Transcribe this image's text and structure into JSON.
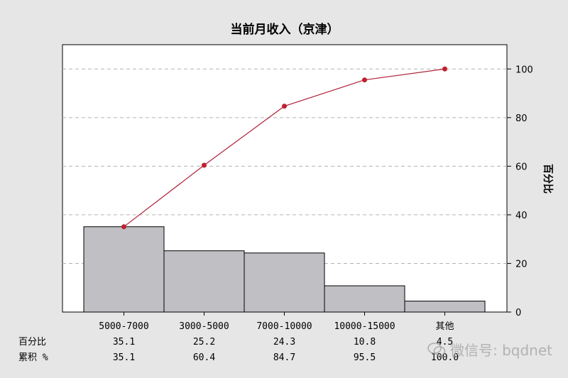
{
  "colors": {
    "bar_fill": "#c0c0c4",
    "bar_stroke": "#000000",
    "line": "#b0223a",
    "point": "#c0202e",
    "grid": "#b4b4b4",
    "plot_bg": "#ffffff",
    "outer_bg": "#e6e6e6"
  },
  "chart_data": {
    "type": "bar",
    "title": "当前月收入（京津）",
    "ylabel": "百分比",
    "ylim": [
      0,
      110
    ],
    "yticks": [
      "0",
      "20",
      "40",
      "60",
      "80",
      "100"
    ],
    "grid": true,
    "categories": [
      "5000-7000",
      "3000-5000",
      "7000-10000",
      "10000-15000",
      "其他"
    ],
    "series": [
      {
        "name": "百分比",
        "kind": "bar",
        "values": [
          35.1,
          25.2,
          24.3,
          10.8,
          4.5
        ]
      },
      {
        "name": "累积 %",
        "kind": "line",
        "values": [
          35.1,
          60.4,
          84.7,
          95.5,
          100.0
        ]
      }
    ],
    "table": {
      "row1_label": "百分比",
      "row1_values": [
        "35.1",
        "25.2",
        "24.3",
        "10.8",
        "4.5"
      ],
      "row2_label": "累积 %",
      "row2_values": [
        "35.1",
        "60.4",
        "84.7",
        "95.5",
        "100.0"
      ]
    }
  },
  "watermark": {
    "text": "微信号: bqdnet",
    "icon": "wechat-icon"
  }
}
